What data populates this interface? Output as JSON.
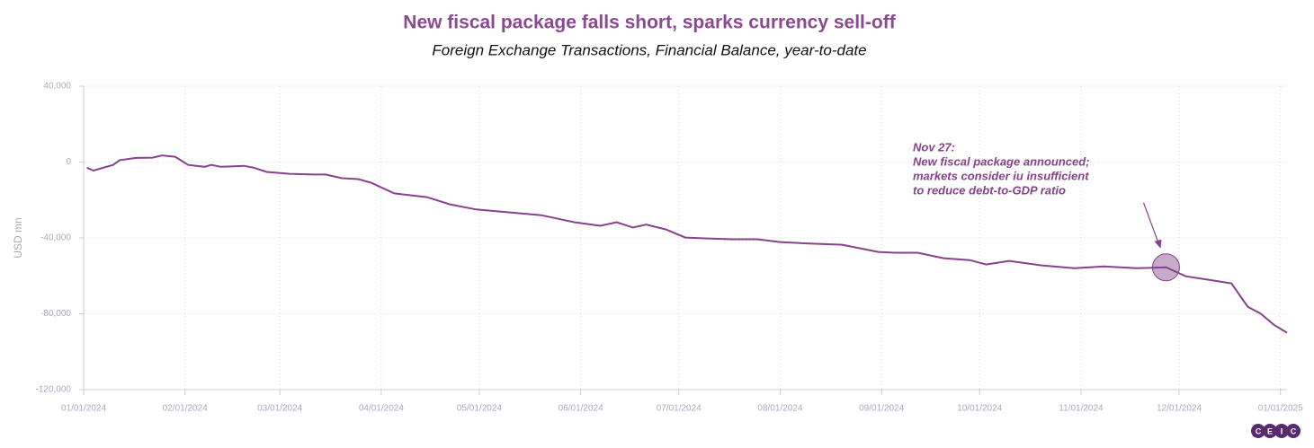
{
  "chart_data": {
    "type": "line",
    "title": "New fiscal package falls short, sparks currency sell-off",
    "subtitle": "Foreign Exchange Transactions, Financial Balance, year-to-date",
    "y_label": "USD mn",
    "x": [
      "2024-01-02",
      "2024-01-04",
      "2024-01-10",
      "2024-01-12",
      "2024-01-17",
      "2024-01-22",
      "2024-01-25",
      "2024-01-29",
      "2024-02-02",
      "2024-02-07",
      "2024-02-09",
      "2024-02-12",
      "2024-02-19",
      "2024-02-22",
      "2024-02-26",
      "2024-03-04",
      "2024-03-11",
      "2024-03-15",
      "2024-03-20",
      "2024-03-25",
      "2024-03-29",
      "2024-04-05",
      "2024-04-10",
      "2024-04-15",
      "2024-04-22",
      "2024-04-30",
      "2024-05-10",
      "2024-05-20",
      "2024-05-30",
      "2024-06-07",
      "2024-06-12",
      "2024-06-17",
      "2024-06-21",
      "2024-06-27",
      "2024-07-03",
      "2024-07-10",
      "2024-07-17",
      "2024-07-25",
      "2024-08-01",
      "2024-08-10",
      "2024-08-20",
      "2024-08-31",
      "2024-09-05",
      "2024-09-12",
      "2024-09-20",
      "2024-09-28",
      "2024-10-03",
      "2024-10-10",
      "2024-10-20",
      "2024-10-30",
      "2024-11-08",
      "2024-11-18",
      "2024-11-27",
      "2024-12-03",
      "2024-12-12",
      "2024-12-17",
      "2024-12-22",
      "2024-12-26",
      "2024-12-30",
      "2025-01-03"
    ],
    "series": [
      {
        "name": "Financial Balance",
        "color": "#86428b",
        "values": [
          -3000,
          -4500,
          -1500,
          1000,
          2200,
          2300,
          3500,
          2800,
          -1500,
          -2500,
          -1500,
          -2500,
          -2000,
          -3000,
          -5200,
          -6200,
          -6600,
          -6600,
          -8500,
          -9000,
          -11000,
          -16500,
          -17500,
          -18500,
          -22300,
          -25000,
          -26500,
          -28000,
          -31700,
          -33600,
          -31700,
          -34500,
          -33000,
          -35500,
          -39800,
          -40300,
          -40700,
          -40700,
          -42200,
          -43000,
          -43600,
          -47400,
          -47800,
          -47800,
          -50700,
          -51700,
          -54000,
          -52100,
          -54500,
          -56000,
          -55000,
          -56000,
          -55500,
          -60200,
          -62600,
          -64000,
          -76300,
          -80000,
          -85800,
          -90000
        ]
      }
    ],
    "xlim": [
      "2024-01-01",
      "2025-01-03"
    ],
    "xticks": [
      {
        "value": "2024-01-01",
        "label": "01/01/2024"
      },
      {
        "value": "2024-02-01",
        "label": "02/01/2024"
      },
      {
        "value": "2024-03-01",
        "label": "03/01/2024"
      },
      {
        "value": "2024-04-01",
        "label": "04/01/2024"
      },
      {
        "value": "2024-05-01",
        "label": "05/01/2024"
      },
      {
        "value": "2024-06-01",
        "label": "06/01/2024"
      },
      {
        "value": "2024-07-01",
        "label": "07/01/2024"
      },
      {
        "value": "2024-08-01",
        "label": "08/01/2024"
      },
      {
        "value": "2024-09-01",
        "label": "09/01/2024"
      },
      {
        "value": "2024-10-01",
        "label": "10/01/2024"
      },
      {
        "value": "2024-11-01",
        "label": "11/01/2024"
      },
      {
        "value": "2024-12-01",
        "label": "12/01/2024"
      },
      {
        "value": "2025-01-01",
        "label": "01/01/2025"
      }
    ],
    "ylim": [
      -120000,
      40000
    ],
    "yticks": [
      {
        "value": -120000,
        "label": "-120,000"
      },
      {
        "value": -80000,
        "label": "-80,000"
      },
      {
        "value": -40000,
        "label": "-40,000"
      },
      0,
      {
        "value": 40000,
        "label": "40,000"
      }
    ],
    "grid": true,
    "annotation": {
      "x": "2024-11-27",
      "lines": [
        "Nov 27:",
        "New fiscal package announced;",
        "markets consider iu insufficient",
        "to reduce debt-to-GDP ratio"
      ]
    },
    "logo": [
      "C",
      "E",
      "I",
      "C"
    ]
  }
}
